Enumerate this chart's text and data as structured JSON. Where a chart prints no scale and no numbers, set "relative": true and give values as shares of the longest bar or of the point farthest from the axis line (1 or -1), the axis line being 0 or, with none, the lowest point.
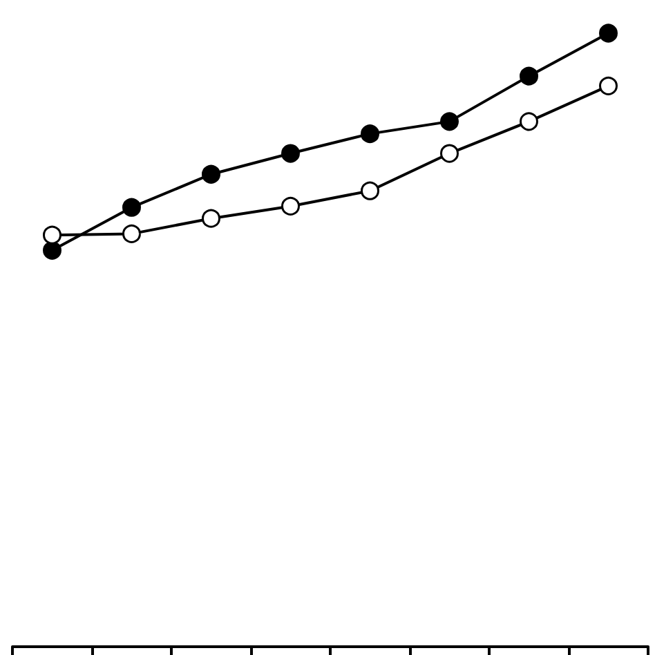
{
  "chart_data": {
    "type": "line",
    "relative": true,
    "categories": [
      null,
      null,
      null,
      null,
      null,
      null,
      null,
      null
    ],
    "series": [
      {
        "color": "#000000",
        "marker": "circle",
        "values": [
          0.646,
          0.716,
          0.77,
          0.804,
          0.836,
          0.856,
          0.93,
          1.0
        ]
      },
      {
        "color": "#000000",
        "marker": "open_circle",
        "values": [
          0.671,
          0.673,
          0.698,
          0.718,
          0.743,
          0.804,
          0.856,
          0.914
        ]
      }
    ],
    "tick_labels": false,
    "grid": false,
    "line_style": "solid"
  }
}
